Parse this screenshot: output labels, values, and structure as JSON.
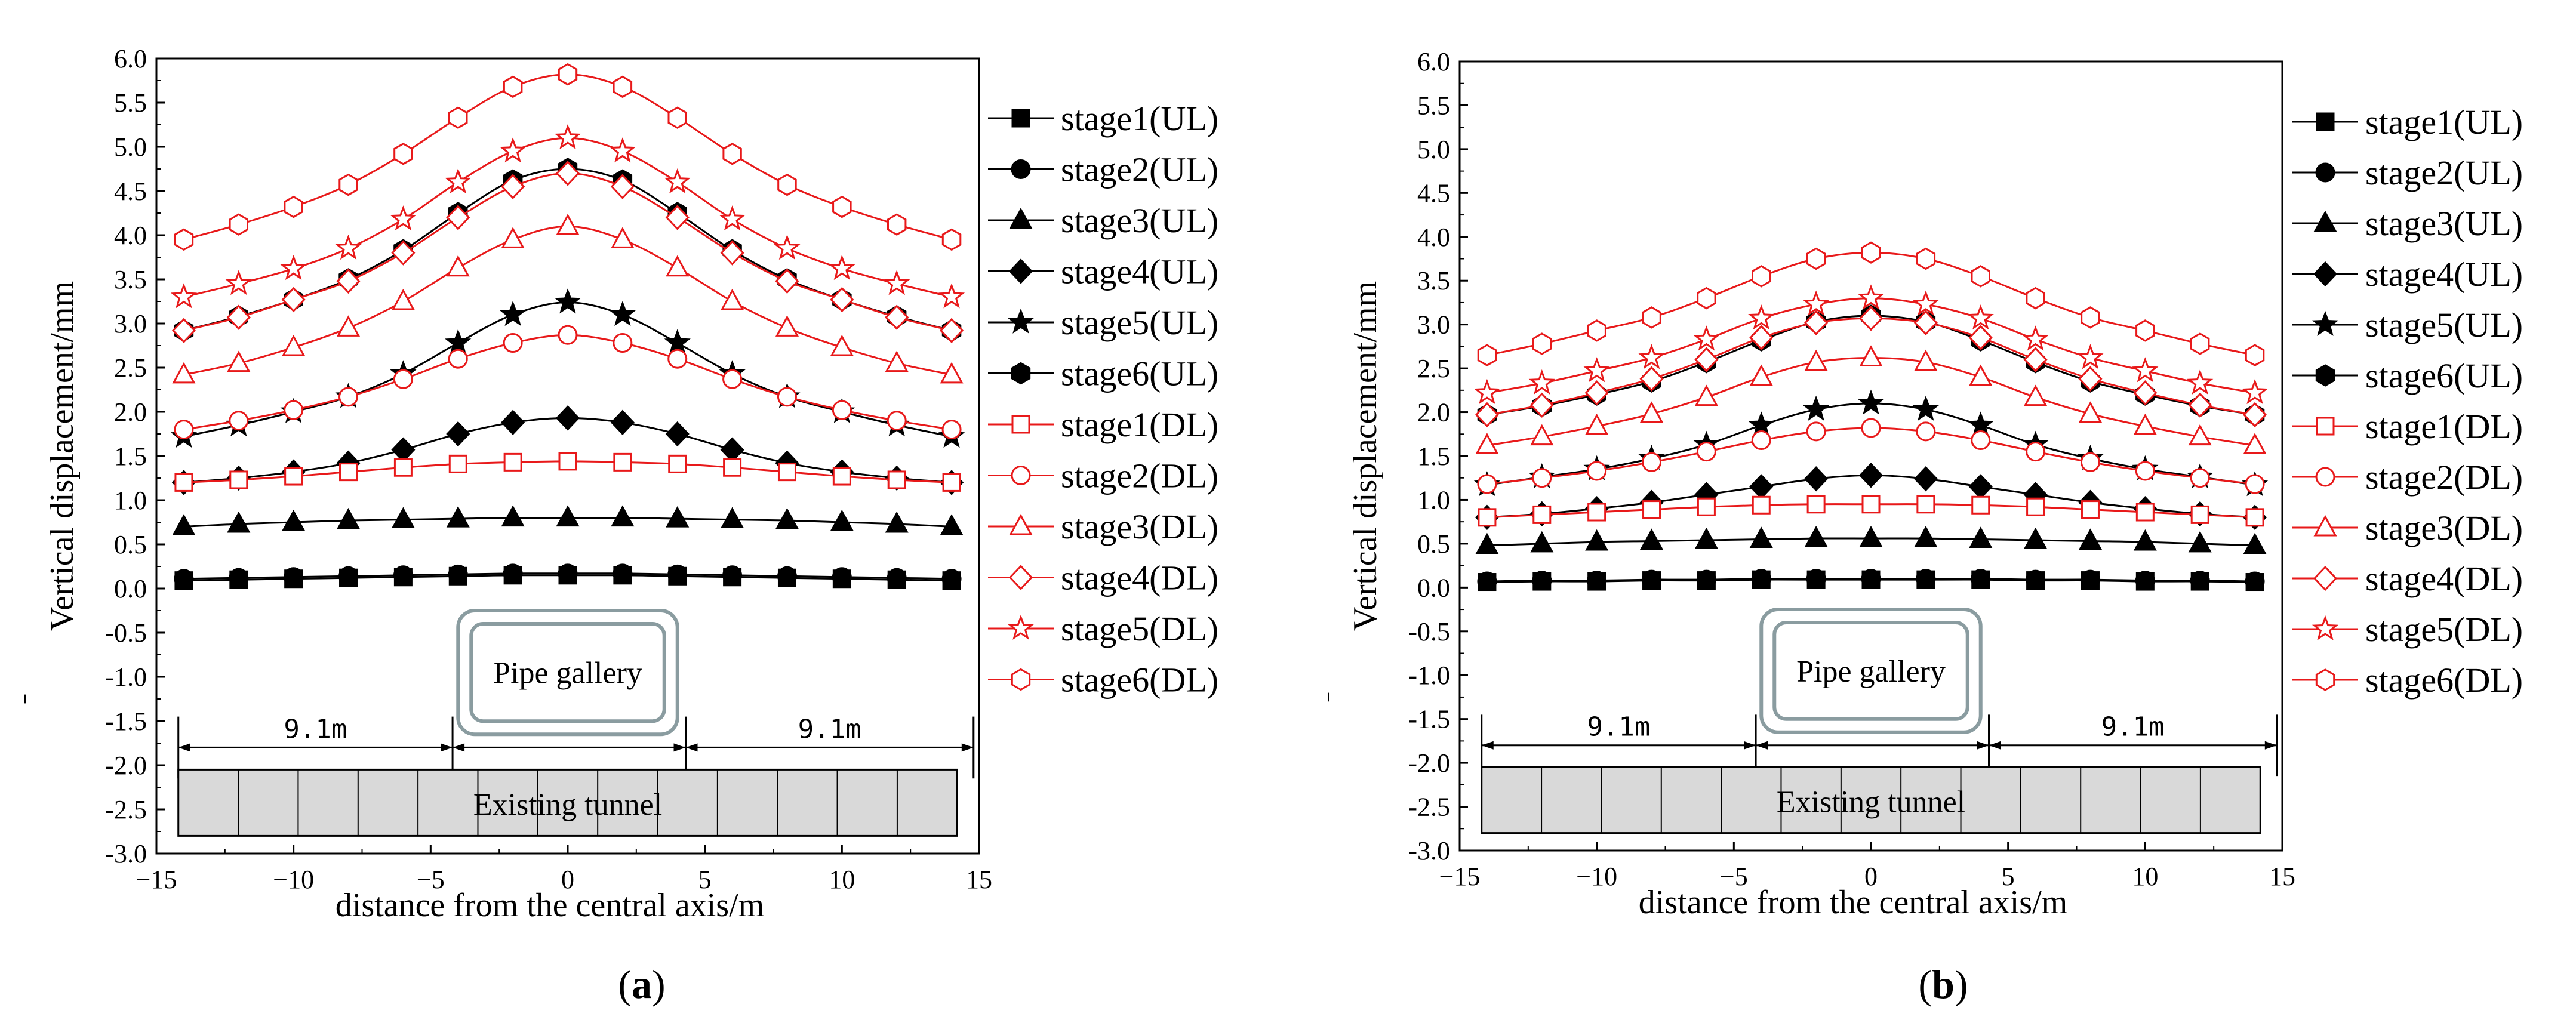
{
  "chart_data": [
    {
      "type": "line",
      "panel_label": "(a)",
      "panel_letter": "a",
      "xlabel": "distance from the central axis/m",
      "ylabel": "Vertical displacement/mm",
      "xlim": [
        -15,
        15
      ],
      "ylim": [
        -3.0,
        6.0
      ],
      "x_ticks": [
        -15,
        -10,
        -5,
        0,
        5,
        10,
        15
      ],
      "y_ticks": [
        "6.0",
        "5.5",
        "5.0",
        "4.5",
        "4.0",
        "3.5",
        "3.0",
        "2.5",
        "2.0",
        "1.5",
        "1.0",
        "0.5",
        "0.0",
        "-0.5",
        "-1.0",
        "-1.5",
        "-2.0",
        "-2.5",
        "-3.0"
      ],
      "x": [
        -14,
        -12,
        -10,
        -8,
        -6,
        -4,
        -2,
        0,
        2,
        4,
        6,
        8,
        10,
        12,
        14
      ],
      "series": [
        {
          "name": "stage1(UL)",
          "values": [
            0.09,
            0.1,
            0.11,
            0.12,
            0.13,
            0.14,
            0.15,
            0.15,
            0.15,
            0.14,
            0.13,
            0.12,
            0.11,
            0.1,
            0.09
          ]
        },
        {
          "name": "stage2(UL)",
          "values": [
            0.11,
            0.12,
            0.13,
            0.14,
            0.15,
            0.16,
            0.17,
            0.17,
            0.17,
            0.16,
            0.15,
            0.14,
            0.13,
            0.12,
            0.11
          ]
        },
        {
          "name": "stage3(UL)",
          "values": [
            0.7,
            0.73,
            0.75,
            0.77,
            0.78,
            0.79,
            0.8,
            0.8,
            0.8,
            0.79,
            0.78,
            0.77,
            0.75,
            0.73,
            0.7
          ]
        },
        {
          "name": "stage4(UL)",
          "values": [
            1.2,
            1.25,
            1.32,
            1.42,
            1.57,
            1.75,
            1.88,
            1.93,
            1.88,
            1.75,
            1.57,
            1.42,
            1.32,
            1.25,
            1.2
          ]
        },
        {
          "name": "stage5(UL)",
          "values": [
            1.72,
            1.85,
            2.0,
            2.17,
            2.43,
            2.78,
            3.1,
            3.24,
            3.1,
            2.78,
            2.43,
            2.17,
            2.0,
            1.85,
            1.72
          ]
        },
        {
          "name": "stage6(UL)",
          "values": [
            2.92,
            3.08,
            3.27,
            3.5,
            3.83,
            4.25,
            4.62,
            4.75,
            4.62,
            4.25,
            3.83,
            3.5,
            3.27,
            3.08,
            2.92
          ]
        },
        {
          "name": "stage1(DL)",
          "values": [
            1.2,
            1.23,
            1.27,
            1.32,
            1.37,
            1.41,
            1.43,
            1.44,
            1.43,
            1.41,
            1.37,
            1.32,
            1.27,
            1.23,
            1.2
          ]
        },
        {
          "name": "stage2(DL)",
          "values": [
            1.8,
            1.9,
            2.02,
            2.17,
            2.37,
            2.6,
            2.78,
            2.87,
            2.78,
            2.6,
            2.37,
            2.17,
            2.02,
            1.9,
            1.8
          ]
        },
        {
          "name": "stage3(DL)",
          "values": [
            2.42,
            2.55,
            2.73,
            2.95,
            3.25,
            3.63,
            3.95,
            4.1,
            3.95,
            3.63,
            3.25,
            2.95,
            2.73,
            2.55,
            2.42
          ]
        },
        {
          "name": "stage4(DL)",
          "values": [
            2.92,
            3.07,
            3.27,
            3.48,
            3.8,
            4.2,
            4.55,
            4.7,
            4.55,
            4.2,
            3.8,
            3.48,
            3.27,
            3.07,
            2.92
          ]
        },
        {
          "name": "stage5(DL)",
          "values": [
            3.3,
            3.45,
            3.62,
            3.85,
            4.18,
            4.6,
            4.95,
            5.1,
            4.95,
            4.6,
            4.18,
            3.85,
            3.62,
            3.45,
            3.3
          ]
        },
        {
          "name": "stage6(DL)",
          "values": [
            3.95,
            4.12,
            4.32,
            4.57,
            4.92,
            5.33,
            5.68,
            5.82,
            5.68,
            5.33,
            4.92,
            4.57,
            4.32,
            4.12,
            3.95
          ]
        }
      ],
      "diagram": {
        "pipe_label": "Pipe gallery",
        "tunnel_label": "Existing tunnel",
        "dim_left": "9.1m",
        "dim_right": "9.1m"
      }
    },
    {
      "type": "line",
      "panel_label": "(b)",
      "panel_letter": "b",
      "xlabel": "distance from the central axis/m",
      "ylabel": "Vertical displacement/mm",
      "xlim": [
        -15,
        15
      ],
      "ylim": [
        -3.0,
        6.0
      ],
      "x_ticks": [
        -15,
        -10,
        -5,
        0,
        5,
        10,
        15
      ],
      "y_ticks": [
        "6.0",
        "5.5",
        "5.0",
        "4.5",
        "4.0",
        "3.5",
        "3.0",
        "2.5",
        "2.0",
        "1.5",
        "1.0",
        "0.5",
        "0.0",
        "-0.5",
        "-1.0",
        "-1.5",
        "-2.0",
        "-2.5",
        "-3.0"
      ],
      "x": [
        -14,
        -12,
        -10,
        -8,
        -6,
        -4,
        -2,
        0,
        2,
        4,
        6,
        8,
        10,
        12,
        14
      ],
      "series": [
        {
          "name": "stage1(UL)",
          "values": [
            0.06,
            0.07,
            0.07,
            0.08,
            0.08,
            0.09,
            0.09,
            0.09,
            0.09,
            0.09,
            0.08,
            0.08,
            0.07,
            0.07,
            0.06
          ]
        },
        {
          "name": "stage2(UL)",
          "values": [
            0.07,
            0.08,
            0.08,
            0.09,
            0.09,
            0.1,
            0.1,
            0.1,
            0.1,
            0.1,
            0.09,
            0.09,
            0.08,
            0.08,
            0.07
          ]
        },
        {
          "name": "stage3(UL)",
          "values": [
            0.48,
            0.5,
            0.52,
            0.53,
            0.54,
            0.55,
            0.56,
            0.56,
            0.56,
            0.55,
            0.54,
            0.53,
            0.52,
            0.5,
            0.48
          ]
        },
        {
          "name": "stage4(UL)",
          "values": [
            0.8,
            0.84,
            0.9,
            0.97,
            1.06,
            1.15,
            1.24,
            1.28,
            1.24,
            1.15,
            1.06,
            0.97,
            0.9,
            0.84,
            0.8
          ]
        },
        {
          "name": "stage5(UL)",
          "values": [
            1.17,
            1.26,
            1.35,
            1.47,
            1.63,
            1.85,
            2.03,
            2.1,
            2.03,
            1.85,
            1.63,
            1.47,
            1.35,
            1.26,
            1.17
          ]
        },
        {
          "name": "stage6(UL)",
          "values": [
            1.97,
            2.07,
            2.2,
            2.35,
            2.57,
            2.82,
            3.03,
            3.1,
            3.03,
            2.82,
            2.57,
            2.35,
            2.2,
            2.07,
            1.97
          ]
        },
        {
          "name": "stage1(DL)",
          "values": [
            0.8,
            0.83,
            0.86,
            0.89,
            0.92,
            0.94,
            0.95,
            0.95,
            0.95,
            0.94,
            0.92,
            0.89,
            0.86,
            0.83,
            0.8
          ]
        },
        {
          "name": "stage2(DL)",
          "values": [
            1.18,
            1.25,
            1.33,
            1.43,
            1.55,
            1.68,
            1.78,
            1.82,
            1.78,
            1.68,
            1.55,
            1.43,
            1.33,
            1.25,
            1.18
          ]
        },
        {
          "name": "stage3(DL)",
          "values": [
            1.62,
            1.72,
            1.84,
            1.98,
            2.17,
            2.4,
            2.57,
            2.62,
            2.57,
            2.4,
            2.17,
            1.98,
            1.84,
            1.72,
            1.62
          ]
        },
        {
          "name": "stage4(DL)",
          "values": [
            1.97,
            2.08,
            2.22,
            2.38,
            2.6,
            2.85,
            3.02,
            3.07,
            3.02,
            2.85,
            2.6,
            2.38,
            2.22,
            2.08,
            1.97
          ]
        },
        {
          "name": "stage5(DL)",
          "values": [
            2.22,
            2.33,
            2.47,
            2.62,
            2.83,
            3.07,
            3.23,
            3.3,
            3.23,
            3.07,
            2.83,
            2.62,
            2.47,
            2.33,
            2.22
          ]
        },
        {
          "name": "stage6(DL)",
          "values": [
            2.65,
            2.78,
            2.93,
            3.08,
            3.3,
            3.55,
            3.75,
            3.82,
            3.75,
            3.55,
            3.3,
            3.08,
            2.93,
            2.78,
            2.65
          ]
        }
      ],
      "diagram": {
        "pipe_label": "Pipe gallery",
        "tunnel_label": "Existing tunnel",
        "dim_left": "9.1m",
        "dim_right": "9.1m"
      }
    }
  ],
  "legend": {
    "entries": [
      {
        "label": "stage1(UL)",
        "marker": "square",
        "filled": true,
        "color": "#000000"
      },
      {
        "label": "stage2(UL)",
        "marker": "circle",
        "filled": true,
        "color": "#000000"
      },
      {
        "label": "stage3(UL)",
        "marker": "triangle",
        "filled": true,
        "color": "#000000"
      },
      {
        "label": "stage4(UL)",
        "marker": "diamond",
        "filled": true,
        "color": "#000000"
      },
      {
        "label": "stage5(UL)",
        "marker": "star",
        "filled": true,
        "color": "#000000"
      },
      {
        "label": "stage6(UL)",
        "marker": "hexagon",
        "filled": true,
        "color": "#000000"
      },
      {
        "label": "stage1(DL)",
        "marker": "square",
        "filled": false,
        "color": "#e8191a"
      },
      {
        "label": "stage2(DL)",
        "marker": "circle",
        "filled": false,
        "color": "#e8191a"
      },
      {
        "label": "stage3(DL)",
        "marker": "triangle",
        "filled": false,
        "color": "#e8191a"
      },
      {
        "label": "stage4(DL)",
        "marker": "diamond",
        "filled": false,
        "color": "#e8191a"
      },
      {
        "label": "stage5(DL)",
        "marker": "star",
        "filled": false,
        "color": "#e8191a"
      },
      {
        "label": "stage6(DL)",
        "marker": "hexagon",
        "filled": false,
        "color": "#e8191a"
      }
    ]
  },
  "colors": {
    "ul": "#000000",
    "dl": "#e8191a",
    "tunnel_fill": "#d9d9d9",
    "pipe_frame": "#8a9ca0"
  }
}
